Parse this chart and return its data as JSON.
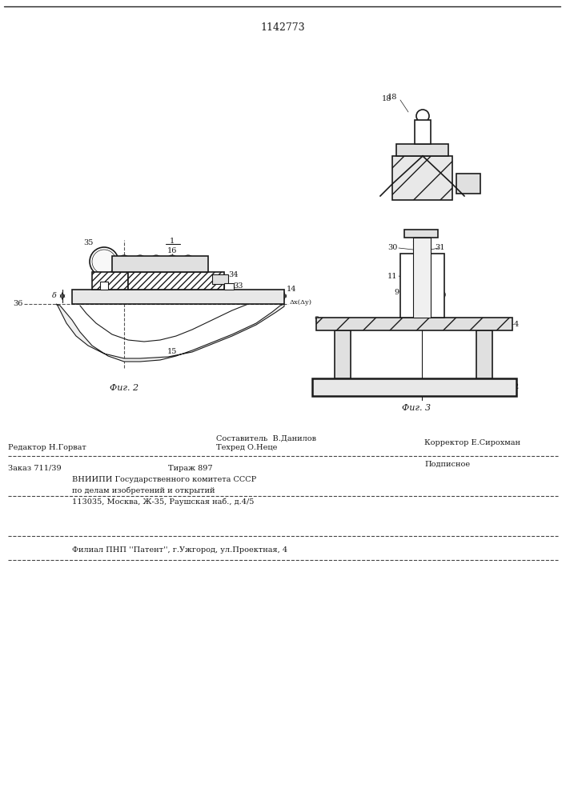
{
  "patent_number": "1142773",
  "fig2_label": "Фиг. 2",
  "fig3_label": "Фиг. 3",
  "footer_line1": "Составитель  В.Данилов",
  "footer_line2": "Техред О.Неце",
  "footer_editor": "Редактор Н.Горват",
  "footer_corrector": "Корректор Е.Сирохман",
  "footer_order": "Заказ 711/39",
  "footer_tirazh": "Тираж 897",
  "footer_podpisnoe": "Подписное",
  "footer_vniiipi": "ВНИИПИ Государственного комитета СССР",
  "footer_affairs": "по делам изобретений и открытий",
  "footer_address": "113035, Москва, Ж-35, Раушская наб., д.4/5",
  "footer_filial": "Филиал ПНП ''Патент'', г.Ужгород, ул.Проектная, 4",
  "bg_color": "#ffffff",
  "line_color": "#1a1a1a",
  "hatch_color": "#333333"
}
